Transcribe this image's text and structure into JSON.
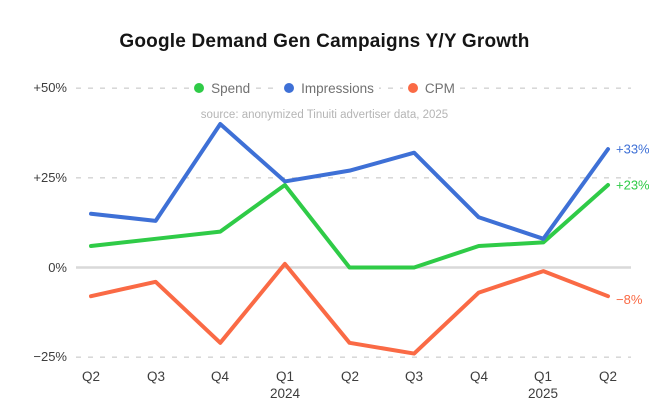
{
  "title": "Google Demand Gen Campaigns Y/Y Growth",
  "source_note": "source: anonymized Tinuiti advertiser data, 2025",
  "legend": [
    {
      "label": "Spend",
      "color": "#2fcb47"
    },
    {
      "label": "Impressions",
      "color": "#3e70d6"
    },
    {
      "label": "CPM",
      "color": "#fa6a45"
    }
  ],
  "colors": {
    "grid_dashed": "#d2d2d2",
    "zero_line": "#d9d9d9",
    "title_text": "#151515",
    "axis_text": "#3d3d3d",
    "legend_text": "#717171",
    "source_text": "#b5b5b5"
  },
  "chart_data": {
    "type": "line",
    "title": "Google Demand Gen Campaigns Y/Y Growth",
    "categories": [
      "Q2",
      "Q3",
      "Q4",
      "Q1",
      "Q2",
      "Q3",
      "Q4",
      "Q1",
      "Q2"
    ],
    "year_labels": [
      {
        "text": "2024",
        "under_index": 3
      },
      {
        "text": "2025",
        "under_index": 7
      }
    ],
    "yticks": [
      {
        "label": "+50%",
        "value": 50
      },
      {
        "label": "+25%",
        "value": 25
      },
      {
        "label": "0%",
        "value": 0
      },
      {
        "label": "−25%",
        "value": -25
      }
    ],
    "ylim": [
      -25,
      50
    ],
    "legend_position": "top",
    "grid": "horizontal dashed lines, solid zero line",
    "series": [
      {
        "name": "Spend",
        "color": "#2fcb47",
        "values": [
          6,
          8,
          10,
          23,
          0,
          0,
          6,
          7,
          23
        ],
        "end_label": "+23%"
      },
      {
        "name": "Impressions",
        "color": "#3e70d6",
        "values": [
          15,
          13,
          40,
          24,
          27,
          32,
          14,
          8,
          33
        ],
        "end_label": "+33%"
      },
      {
        "name": "CPM",
        "color": "#fa6a45",
        "values": [
          -8,
          -4,
          -21,
          1,
          -21,
          -24,
          -7,
          -1,
          -8
        ],
        "end_label": "−8%"
      }
    ]
  }
}
